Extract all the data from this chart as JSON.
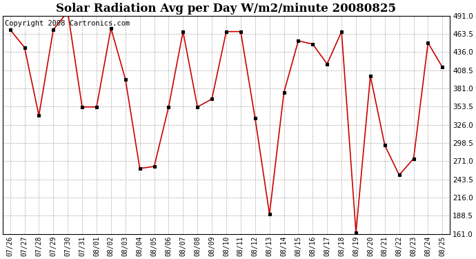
{
  "title": "Solar Radiation Avg per Day W/m2/minute 20080825",
  "copyright_text": "Copyright 2008 Cartronics.com",
  "dates": [
    "07/26",
    "07/27",
    "07/28",
    "07/29",
    "07/30",
    "07/31",
    "08/01",
    "08/02",
    "08/03",
    "08/04",
    "08/05",
    "08/06",
    "08/07",
    "08/08",
    "08/09",
    "08/10",
    "08/11",
    "08/12",
    "08/13",
    "08/14",
    "08/15",
    "08/16",
    "08/17",
    "08/18",
    "08/19",
    "08/20",
    "08/21",
    "08/22",
    "08/23",
    "08/24",
    "08/25"
  ],
  "values": [
    470,
    443,
    340,
    470,
    497,
    353,
    353,
    472,
    395,
    260,
    263,
    353,
    467,
    353,
    365,
    467,
    467,
    336,
    191,
    375,
    453,
    448,
    418,
    467,
    163,
    400,
    295,
    250,
    275,
    450,
    413
  ],
  "ylim": [
    161.0,
    491.0
  ],
  "yticks": [
    161.0,
    188.5,
    216.0,
    243.5,
    271.0,
    298.5,
    326.0,
    353.5,
    381.0,
    408.5,
    436.0,
    463.5,
    491.0
  ],
  "line_color": "#cc0000",
  "marker_color": "#000000",
  "bg_color": "#ffffff",
  "plot_bg_color": "#ffffff",
  "grid_color": "#aaaaaa",
  "title_fontsize": 12,
  "copyright_fontsize": 7.5
}
